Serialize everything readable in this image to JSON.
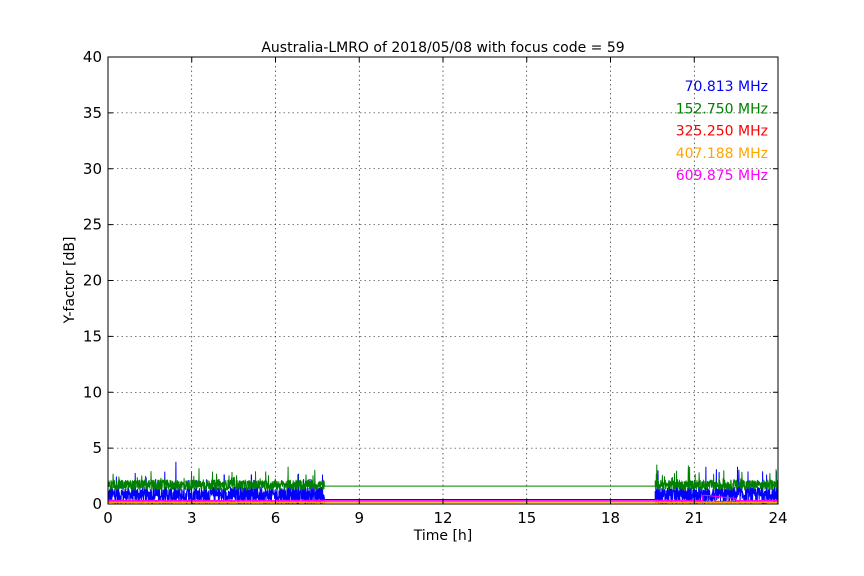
{
  "chart_data": {
    "type": "line",
    "title": "Australia-LMRO of 2018/05/08 with focus code = 59",
    "xlabel": "Time [h]",
    "ylabel": "Y-factor [dB]",
    "xlim": [
      0,
      24
    ],
    "ylim": [
      0,
      40
    ],
    "xticks": [
      0,
      3,
      6,
      9,
      12,
      15,
      18,
      21,
      24
    ],
    "yticks": [
      0,
      5,
      10,
      15,
      20,
      25,
      30,
      35,
      40
    ],
    "grid": true,
    "legend_placement": "top-right",
    "series": [
      {
        "name": "70.813 MHz",
        "color": "#0000ff",
        "base": 0.8,
        "noise": 1.5,
        "gap_level": 0.4,
        "segments": [
          [
            0,
            7.75
          ],
          [
            19.6,
            24
          ]
        ]
      },
      {
        "name": "152.750 MHz",
        "color": "#008000",
        "base": 1.7,
        "noise": 0.9,
        "gap_level": 1.6,
        "segments": [
          [
            0,
            7.75
          ],
          [
            19.6,
            24
          ]
        ]
      },
      {
        "name": "325.250 MHz",
        "color": "#ff0000",
        "base": 0.2,
        "noise": 0.15,
        "gap_level": 0.2,
        "segments": [
          [
            0,
            7.75
          ],
          [
            19.6,
            24
          ]
        ]
      },
      {
        "name": "407.188 MHz",
        "color": "#ffa500",
        "base": 0.15,
        "noise": 0.1,
        "gap_level": 0.15,
        "segments": [
          [
            0,
            7.75
          ],
          [
            19.6,
            24
          ]
        ]
      },
      {
        "name": "609.875 MHz",
        "color": "#ff00ff",
        "base": 0.3,
        "noise": 0.1,
        "gap_level": 0.3,
        "segments": [
          [
            0,
            7.75
          ],
          [
            19.6,
            24
          ]
        ]
      }
    ]
  }
}
